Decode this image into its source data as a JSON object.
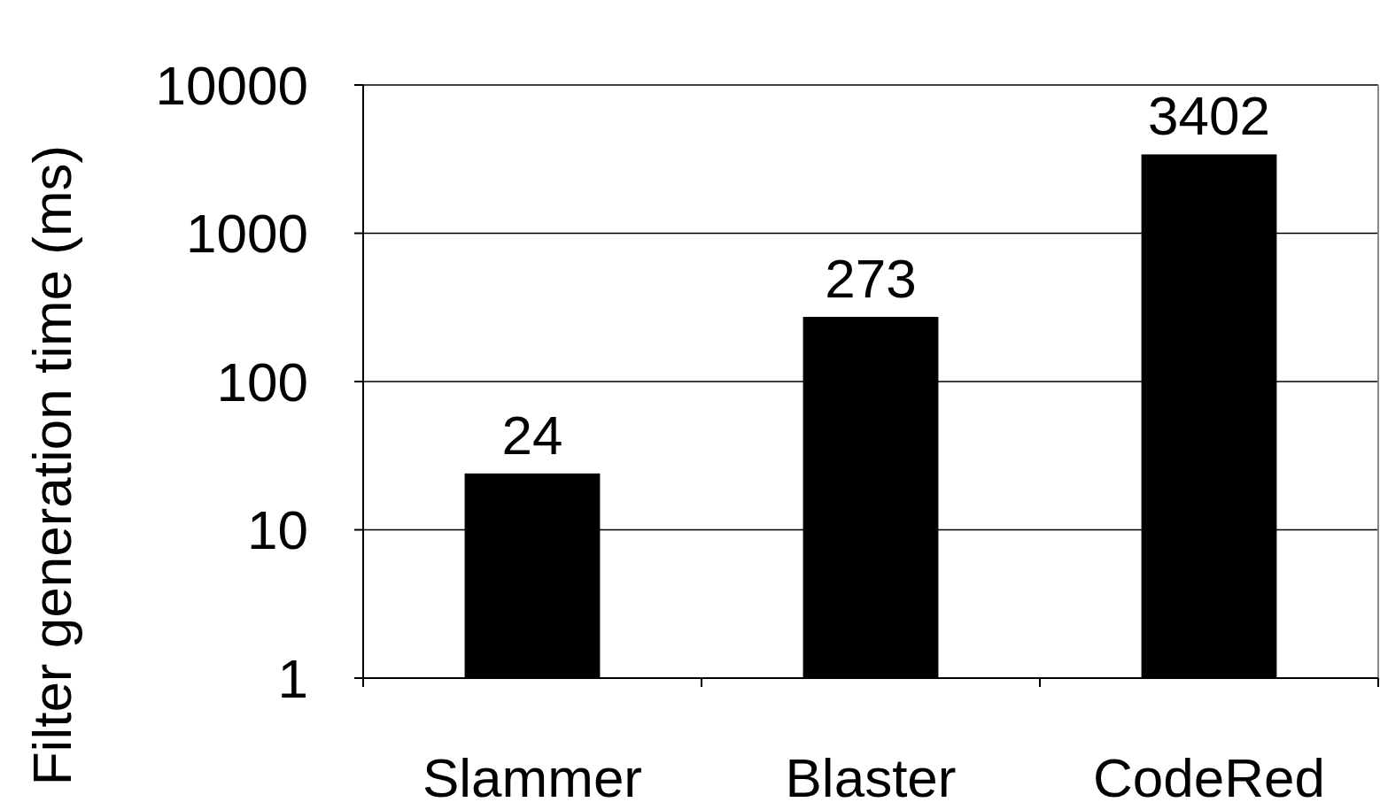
{
  "chart_data": {
    "type": "bar",
    "ylabel": "Filter generation time (ms)",
    "categories": [
      "Slammer",
      "Blaster",
      "CodeRed"
    ],
    "values": [
      24,
      273,
      3402
    ],
    "color": "#000000",
    "log": true,
    "ylim": [
      1,
      10000
    ],
    "yticks": [
      1,
      10,
      100,
      1000,
      10000
    ],
    "grid": "y",
    "data_labels": true
  }
}
